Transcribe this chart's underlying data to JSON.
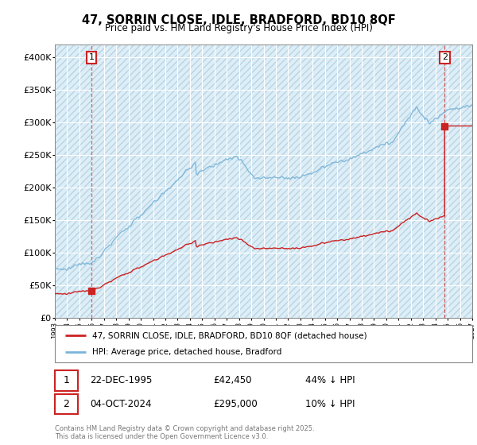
{
  "title": "47, SORRIN CLOSE, IDLE, BRADFORD, BD10 8QF",
  "subtitle": "Price paid vs. HM Land Registry's House Price Index (HPI)",
  "hpi_color": "#7ab4d8",
  "price_color": "#cc2222",
  "background_color": "#ddeef7",
  "ylim": [
    0,
    420000
  ],
  "yticks": [
    0,
    50000,
    100000,
    150000,
    200000,
    250000,
    300000,
    350000,
    400000
  ],
  "ytick_labels": [
    "£0",
    "£50K",
    "£100K",
    "£150K",
    "£200K",
    "£250K",
    "£300K",
    "£350K",
    "£400K"
  ],
  "sale1_year": 1995.97,
  "sale1_price": 42450,
  "sale1_date": "22-DEC-1995",
  "sale1_label": "44% ↓ HPI",
  "sale2_year": 2024.75,
  "sale2_price": 295000,
  "sale2_date": "04-OCT-2024",
  "sale2_label": "10% ↓ HPI",
  "legend_line1": "47, SORRIN CLOSE, IDLE, BRADFORD, BD10 8QF (detached house)",
  "legend_line2": "HPI: Average price, detached house, Bradford",
  "footer": "Contains HM Land Registry data © Crown copyright and database right 2025.\nThis data is licensed under the Open Government Licence v3.0.",
  "xmin": 1993,
  "xmax": 2027
}
